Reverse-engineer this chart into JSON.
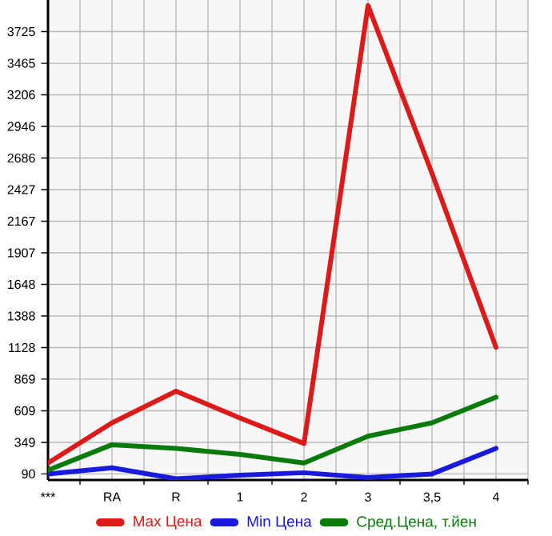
{
  "chart_data": {
    "type": "line",
    "categories": [
      "***",
      "RA",
      "R",
      "1",
      "2",
      "3",
      "3,5",
      "4"
    ],
    "series": [
      {
        "name": "Max Цена",
        "color": "#dd1a1a",
        "values": [
          180,
          510,
          770,
          550,
          340,
          3940,
          2560,
          1130
        ]
      },
      {
        "name": "Min Цена",
        "color": "#1a1add",
        "values": [
          90,
          140,
          50,
          80,
          100,
          60,
          90,
          300
        ]
      },
      {
        "name": "Сред.Цена, т.йен",
        "color": "#0a7a0a",
        "values": [
          120,
          330,
          300,
          250,
          180,
          400,
          510,
          720
        ]
      }
    ],
    "ylim": [
      40,
      3985
    ],
    "yticks": [
      90,
      349,
      609,
      869,
      1128,
      1388,
      1648,
      1907,
      2167,
      2427,
      2686,
      2946,
      3206,
      3465,
      3725
    ],
    "grid": true,
    "legend": "bottom",
    "marker": "none",
    "line_style": "solid"
  }
}
